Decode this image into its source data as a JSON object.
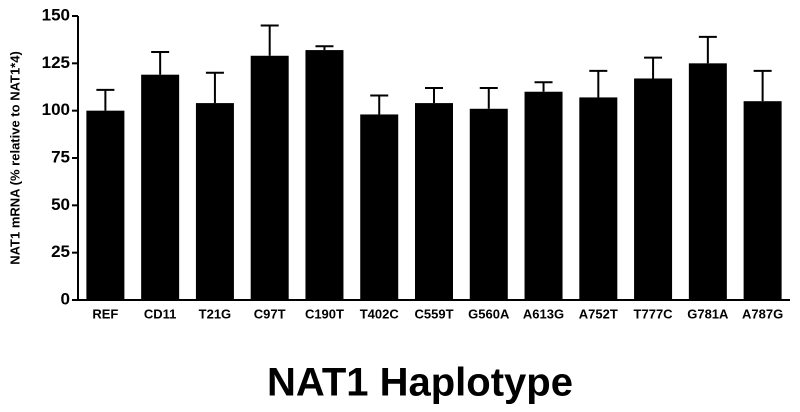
{
  "chart_data": {
    "type": "bar",
    "x_label": "NAT1 Haplotype",
    "y_label": "NAT1 mRNA (% relative to NAT1*4)",
    "categories": [
      "REF",
      "CD11",
      "T21G",
      "C97T",
      "C190T",
      "T402C",
      "C559T",
      "G560A",
      "A613G",
      "A752T",
      "T777C",
      "G781A",
      "A787G"
    ],
    "values": [
      100,
      119,
      104,
      129,
      132,
      98,
      104,
      101,
      110,
      107,
      117,
      125,
      105
    ],
    "errors": [
      11,
      12,
      16,
      16,
      2,
      10,
      8,
      11,
      5,
      14,
      11,
      14,
      16
    ],
    "color": "#000000",
    "ylim": [
      0,
      150
    ],
    "yticks": [
      0,
      25,
      50,
      75,
      100,
      125,
      150
    ],
    "grid": false
  }
}
